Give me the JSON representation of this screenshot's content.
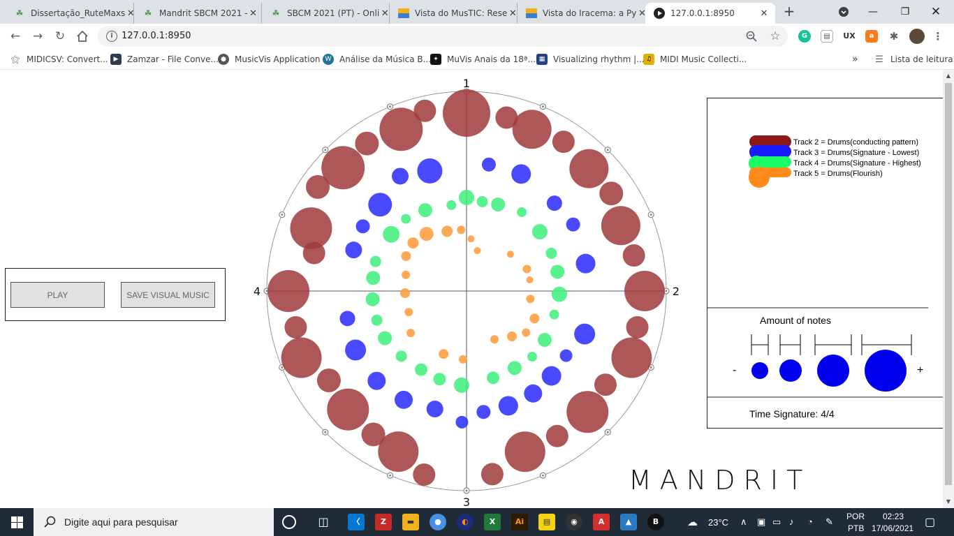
{
  "browser": {
    "tabs": [
      {
        "title": "Dissertação_RuteMaxs",
        "icon": "overleaf-icon"
      },
      {
        "title": "Mandrit SBCM 2021 -",
        "icon": "overleaf-icon"
      },
      {
        "title": "SBCM 2021 (PT) - Onli",
        "icon": "overleaf-icon"
      },
      {
        "title": "Vista do MusTIC: Rese",
        "icon": "journal-icon"
      },
      {
        "title": "Vista do Iracema: a Py",
        "icon": "journal-icon"
      },
      {
        "title": "127.0.0.1:8950",
        "icon": "play-icon"
      }
    ],
    "url": "127.0.0.1:8950",
    "bookmarks": [
      {
        "label": "MIDICSV: Convert...",
        "icon": "midicsv-icon"
      },
      {
        "label": "Zamzar - File Conve...",
        "icon": "zamzar-icon"
      },
      {
        "label": "MusicVis Application",
        "icon": "globe-icon"
      },
      {
        "label": "Análise da Música B...",
        "icon": "wordpress-icon"
      },
      {
        "label": "MuVis Anais da 18ª...",
        "icon": "muvis-icon"
      },
      {
        "label": "Visualizing rhythm |...",
        "icon": "grid-icon"
      },
      {
        "label": "MIDI Music Collecti...",
        "icon": "midi-icon"
      }
    ],
    "reading_list": "Lista de leitura",
    "overflow": "»"
  },
  "app": {
    "play_label": "PLAY",
    "save_label": "SAVE VISUAL MUSIC",
    "brand": "MANDRIT",
    "beat_labels": [
      "1",
      "2",
      "3",
      "4"
    ],
    "legend": [
      {
        "label": "Track 2 = Drums(conducting pattern)",
        "color": "#8b1a1a"
      },
      {
        "label": "Track 3 = Drums(Signature - Lowest)",
        "color": "#1a1aff"
      },
      {
        "label": "Track 4 = Drums(Signature - Highest)",
        "color": "#1aff66"
      },
      {
        "label": "Track 5 = Drums(Flourish)",
        "color": "#ff8a1a"
      }
    ],
    "amount_title": "Amount of notes",
    "amount_minus": "-",
    "amount_plus": "+",
    "time_signature": "Time Signature: 4/4"
  },
  "taskbar": {
    "search_placeholder": "Digite aqui para pesquisar",
    "weather": "23°C",
    "lang1": "POR",
    "lang2": "PTB",
    "time": "02:23",
    "date": "17/06/2021"
  },
  "colors": {
    "track2": "#a0393b",
    "track3": "#2929ff",
    "track4": "#3df07a",
    "track5": "#ff9a38"
  }
}
